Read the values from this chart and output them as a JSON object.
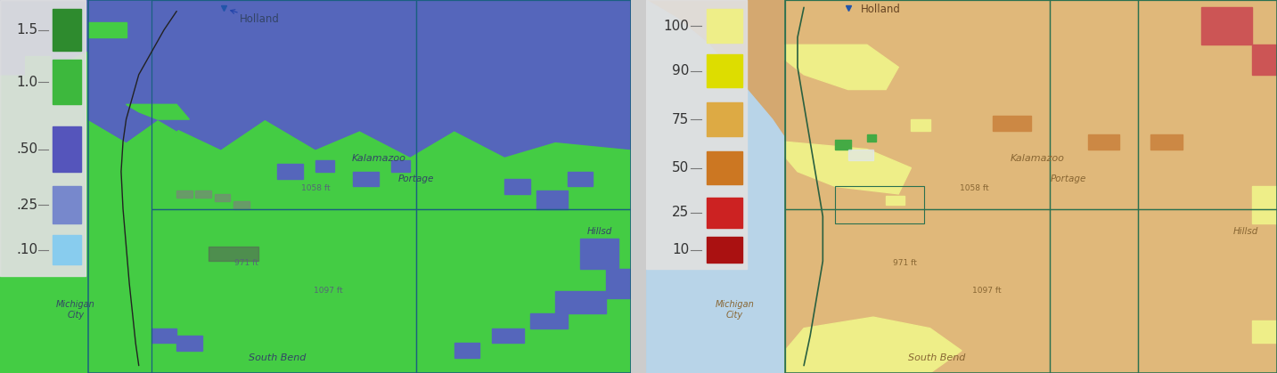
{
  "figsize": [
    14.33,
    4.19
  ],
  "dpi": 100,
  "left_legend": {
    "bg": "#e8e8e8",
    "labels": [
      "1.5",
      "1.0",
      ".50",
      ".25",
      ".10"
    ],
    "colors": [
      "#2e8b2e",
      "#3db83d",
      "#5555bb",
      "#7788cc",
      "#88ccee"
    ],
    "tick_color": "#555555",
    "text_color": "#333333",
    "font_size": 11
  },
  "right_legend": {
    "bg": "#e8e8e8",
    "labels": [
      "100",
      "90",
      "75",
      "50",
      "25",
      "10"
    ],
    "colors": [
      "#eeee88",
      "#dddd00",
      "#ddaa44",
      "#cc7722",
      "#cc2222",
      "#aa1111"
    ],
    "tick_color": "#555555",
    "text_color": "#333333",
    "font_size": 11
  },
  "left_map": {
    "base_green": "#44cc44",
    "blue_purple": "#5566bb",
    "light_blue": "#88aabb",
    "cyan": "#44ccdd",
    "dark_green": "#33aa33",
    "border_color": "#1a6080",
    "road_color": "#222222",
    "text_color": "#334466",
    "small_text": "#556677"
  },
  "right_map": {
    "base_tan": "#d4a870",
    "light_tan": "#e8c896",
    "yellow": "#eeee88",
    "water_blue": "#b8d4e8",
    "border_color": "#2a7050",
    "road_color": "#2a6040",
    "text_color": "#664422",
    "pink_red": "#cc4444",
    "orange": "#cc8844"
  }
}
